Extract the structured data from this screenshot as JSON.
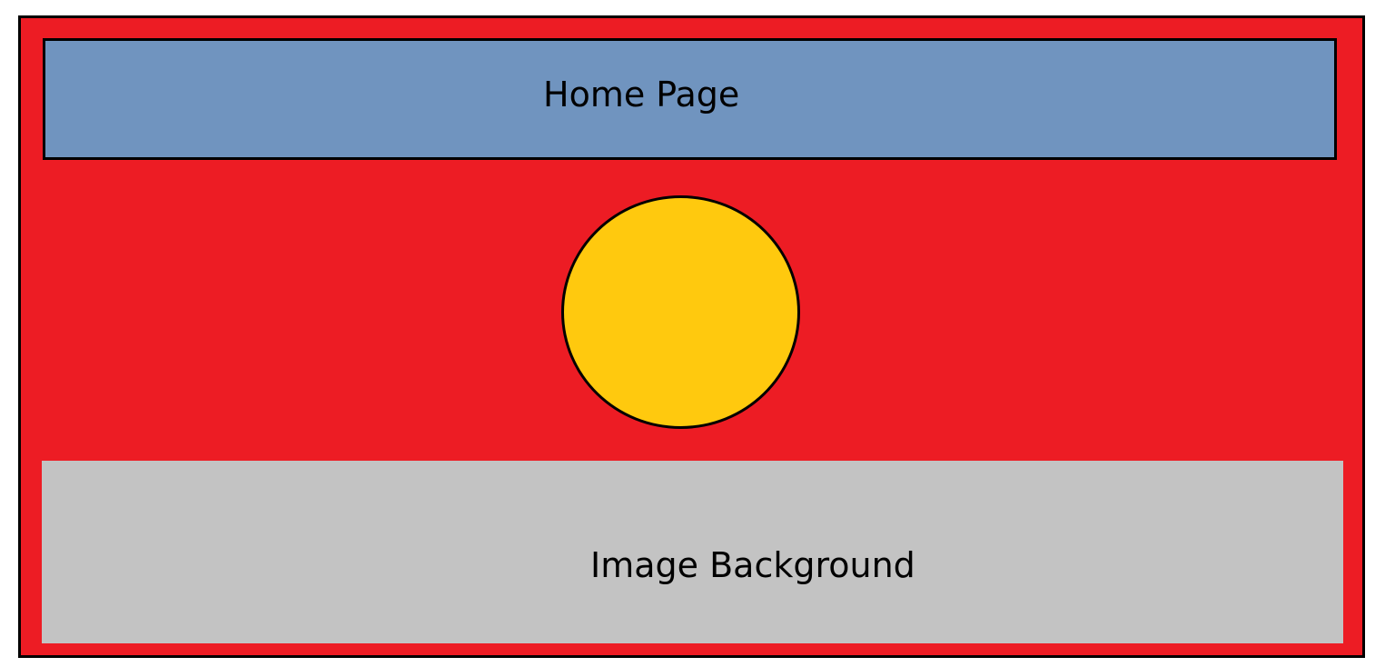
{
  "header": {
    "title": "Home Page"
  },
  "image_area": {
    "label": "Image Background"
  },
  "colors": {
    "page_background": "#ed1c24",
    "header_bar": "#7094bf",
    "circle": "#ffc90e",
    "image_area": "#c3c3c3",
    "outline": "#000000"
  }
}
